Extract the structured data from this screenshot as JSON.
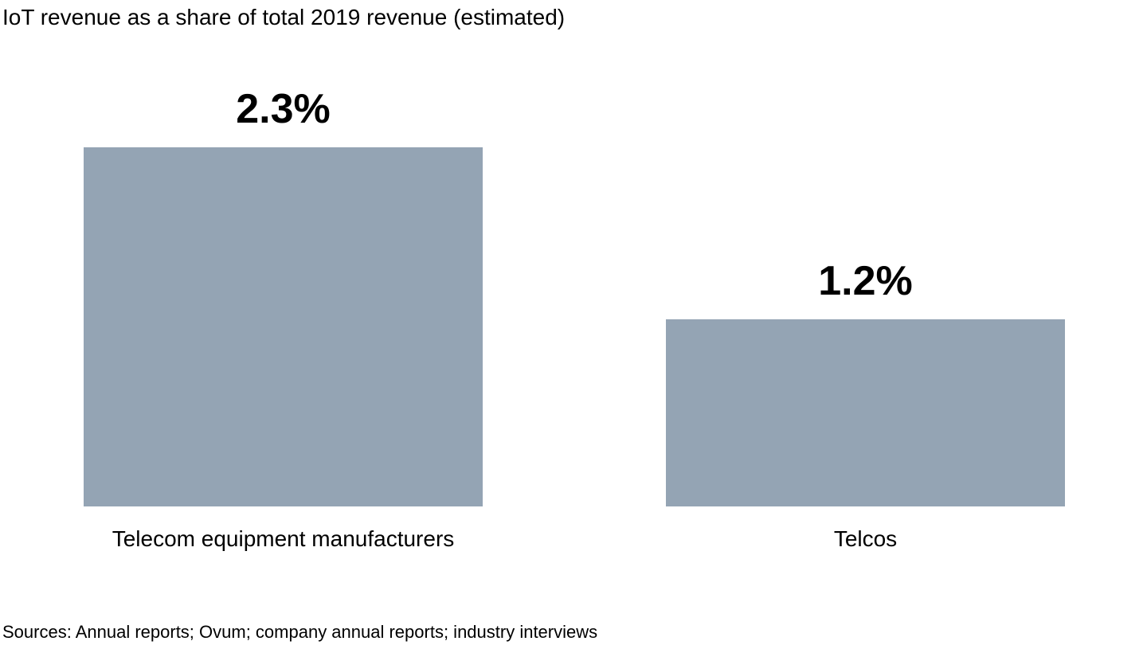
{
  "title": "IoT revenue as a share of total 2019 revenue (estimated)",
  "footer": {
    "sources": "Sources: Annual reports; Ovum; company annual reports; industry interviews"
  },
  "colors": {
    "bar": "#94a4b4",
    "text": "#000000",
    "background": "#ffffff"
  },
  "chart_data": {
    "type": "bar",
    "title": "IoT revenue as a share of total 2019 revenue (estimated)",
    "categories": [
      "Telecom equipment manufacturers",
      "Telcos"
    ],
    "values": [
      2.3,
      1.2
    ],
    "value_labels": [
      "2.3%",
      "1.2%"
    ],
    "unit": "%",
    "xlabel": "",
    "ylabel": "",
    "ylim": [
      0,
      2.3
    ],
    "grid": false,
    "legend": false,
    "axes_visible": false,
    "source_note": "Sources: Annual reports; Ovum; company annual reports; industry interviews"
  }
}
